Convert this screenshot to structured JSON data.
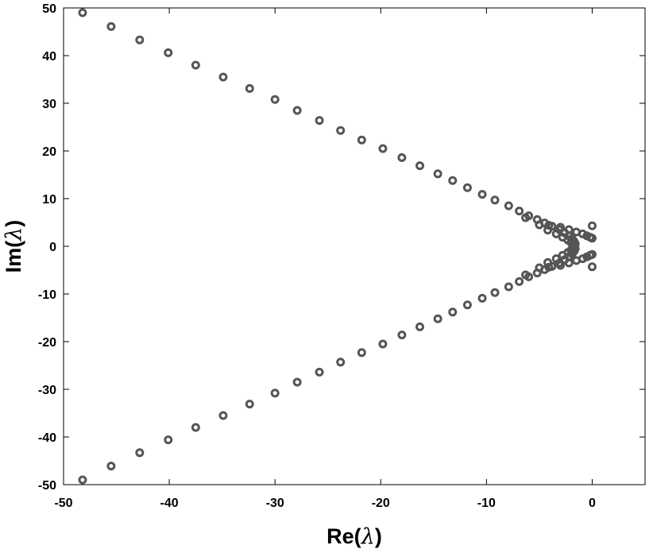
{
  "chart_data": {
    "type": "scatter",
    "xlabel": {
      "prefix": "Re(",
      "symbol": "λ",
      "suffix": ")"
    },
    "ylabel": {
      "prefix": "Im(",
      "symbol": "λ",
      "suffix": ")"
    },
    "xlim": [
      -50,
      5
    ],
    "ylim": [
      -50,
      50
    ],
    "xticks": [
      -50,
      -40,
      -30,
      -20,
      -10,
      0
    ],
    "yticks": [
      -50,
      -40,
      -30,
      -20,
      -10,
      0,
      10,
      20,
      30,
      40,
      50
    ],
    "xtick_labels": [
      "-50",
      "-40",
      "-30",
      "-20",
      "-10",
      "0"
    ],
    "ytick_labels": [
      "-50",
      "-40",
      "-30",
      "-20",
      "-10",
      "0",
      "10",
      "20",
      "30",
      "40",
      "50"
    ],
    "grid": false,
    "marker_color": "#555555",
    "points_upper_outer": [
      [
        -48.2,
        49.0
      ],
      [
        -45.5,
        46.1
      ],
      [
        -42.8,
        43.3
      ],
      [
        -40.1,
        40.6
      ],
      [
        -37.5,
        38.0
      ],
      [
        -34.9,
        35.5
      ],
      [
        -32.4,
        33.1
      ],
      [
        -30.0,
        30.8
      ],
      [
        -27.9,
        28.5
      ],
      [
        -25.8,
        26.4
      ],
      [
        -23.8,
        24.3
      ],
      [
        -21.8,
        22.3
      ],
      [
        -19.8,
        20.5
      ],
      [
        -18.0,
        18.6
      ],
      [
        -16.3,
        16.9
      ],
      [
        -14.6,
        15.2
      ],
      [
        -13.2,
        13.8
      ],
      [
        -11.8,
        12.3
      ],
      [
        -10.4,
        10.9
      ],
      [
        -9.2,
        9.7
      ],
      [
        -7.9,
        8.5
      ],
      [
        -6.9,
        7.4
      ],
      [
        -6.0,
        6.4
      ],
      [
        -5.2,
        5.6
      ],
      [
        -4.5,
        4.9
      ],
      [
        -3.8,
        4.2
      ],
      [
        -3.1,
        3.5
      ],
      [
        -2.6,
        2.8
      ],
      [
        -2.2,
        2.2
      ],
      [
        -1.9,
        1.6
      ],
      [
        -1.7,
        1.0
      ],
      [
        -1.6,
        0.5
      ]
    ],
    "points_upper_inner": [
      [
        -6.3,
        6.0
      ],
      [
        -5.0,
        4.5
      ],
      [
        -4.2,
        3.4
      ],
      [
        -3.4,
        2.6
      ],
      [
        -2.8,
        1.9
      ],
      [
        -2.3,
        1.3
      ],
      [
        -2.0,
        0.8
      ],
      [
        -1.8,
        0.3
      ]
    ],
    "points_upper_right": [
      [
        -4.1,
        4.4
      ],
      [
        -3.0,
        4.0
      ],
      [
        -2.2,
        3.5
      ],
      [
        -1.5,
        3.0
      ],
      [
        -0.9,
        2.6
      ],
      [
        -0.5,
        2.2
      ],
      [
        -0.2,
        1.9
      ],
      [
        0.0,
        1.7
      ],
      [
        0.0,
        4.3
      ]
    ]
  }
}
